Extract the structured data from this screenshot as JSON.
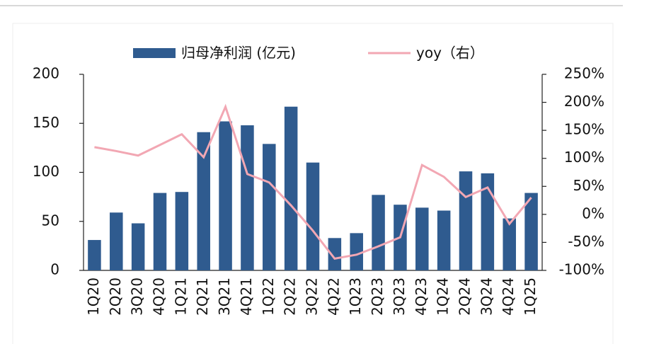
{
  "chart_data": {
    "type": "bar_line",
    "categories": [
      "1Q20",
      "2Q20",
      "3Q20",
      "4Q20",
      "1Q21",
      "2Q21",
      "3Q21",
      "4Q21",
      "1Q22",
      "2Q22",
      "3Q22",
      "4Q22",
      "1Q23",
      "2Q23",
      "3Q23",
      "4Q23",
      "1Q24",
      "2Q24",
      "3Q24",
      "4Q24",
      "1Q25"
    ],
    "series": [
      {
        "name": "归母净利润 (亿元)",
        "type": "bar",
        "color": "#2f5b8f",
        "values": [
          31,
          59,
          48,
          79,
          80,
          141,
          152,
          148,
          129,
          167,
          110,
          33,
          38,
          77,
          67,
          64,
          61,
          101,
          99,
          53,
          79
        ]
      },
      {
        "name": "yoy（右）",
        "type": "line",
        "axis": "y2",
        "color": "#f2a7b3",
        "values": [
          120,
          113,
          105,
          124,
          143,
          102,
          192,
          72,
          57,
          16,
          -29,
          -79,
          -72,
          -57,
          -41,
          88,
          67,
          31,
          48,
          -17,
          30
        ]
      }
    ],
    "ylim": [
      0,
      200
    ],
    "yticks": [
      0,
      50,
      100,
      150,
      200
    ],
    "y2lim": [
      -100,
      250
    ],
    "y2ticks": [
      {
        "value": -100,
        "label": "-100%"
      },
      {
        "value": -50,
        "label": "-50%"
      },
      {
        "value": 0,
        "label": "0%"
      },
      {
        "value": 50,
        "label": "50%"
      },
      {
        "value": 100,
        "label": "100%"
      },
      {
        "value": 150,
        "label": "150%"
      },
      {
        "value": 200,
        "label": "200%"
      },
      {
        "value": 250,
        "label": "250%"
      }
    ]
  }
}
